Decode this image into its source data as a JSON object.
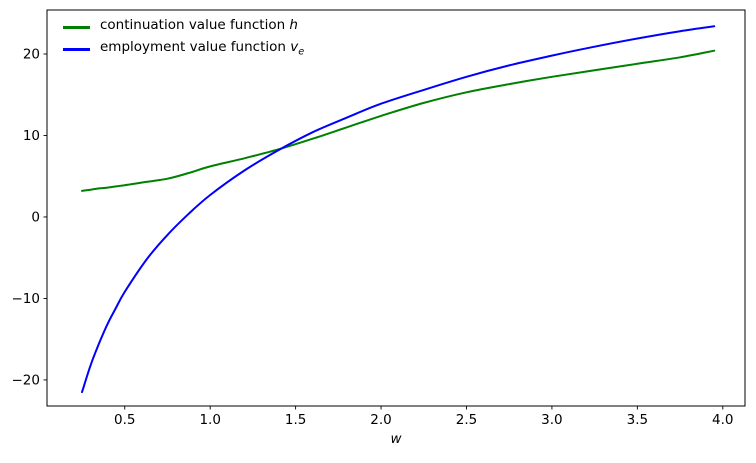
{
  "figure": {
    "background": "#ffffff",
    "frame_color": "#000000",
    "text_color": "#000000"
  },
  "chart_data": {
    "type": "line",
    "title": "",
    "xlabel": "w",
    "ylabel": "",
    "grid": false,
    "legend_position": "upper left",
    "xlim": [
      0.045,
      4.13
    ],
    "ylim": [
      -23.2,
      25.4
    ],
    "xticks": {
      "values": [
        0.5,
        1.0,
        1.5,
        2.0,
        2.5,
        3.0,
        3.5,
        4.0
      ],
      "labels": [
        "0.5",
        "1.0",
        "1.5",
        "2.0",
        "2.5",
        "3.0",
        "3.5",
        "4.0"
      ]
    },
    "yticks": {
      "values": [
        -20,
        -10,
        0,
        10,
        20
      ],
      "labels": [
        "−20",
        "−10",
        "0",
        "10",
        "20"
      ]
    },
    "x": [
      0.25,
      0.3,
      0.35,
      0.4,
      0.45,
      0.5,
      0.625,
      0.75,
      0.875,
      1.0,
      1.2,
      1.4,
      1.6,
      1.8,
      2.0,
      2.25,
      2.5,
      2.75,
      3.0,
      3.25,
      3.5,
      3.75,
      3.95
    ],
    "series": [
      {
        "name": "continuation value function h",
        "legend_plain": "continuation value function ",
        "legend_math": "h",
        "legend_sub": "",
        "color": "#008000",
        "line_width": 2,
        "values": [
          3.2,
          3.35,
          3.5,
          3.6,
          3.75,
          3.9,
          4.3,
          4.7,
          5.4,
          6.2,
          7.2,
          8.3,
          9.6,
          11.0,
          12.4,
          14.0,
          15.3,
          16.3,
          17.2,
          18.0,
          18.8,
          19.6,
          20.4
        ]
      },
      {
        "name": "employment value function v_e",
        "legend_plain": "employment value function ",
        "legend_math": "v",
        "legend_sub": "e",
        "color": "#0000ff",
        "line_width": 2,
        "values": [
          -21.5,
          -18.2,
          -15.5,
          -13.1,
          -11.1,
          -9.2,
          -5.3,
          -2.2,
          0.4,
          2.7,
          5.7,
          8.2,
          10.4,
          12.2,
          13.9,
          15.6,
          17.2,
          18.6,
          19.8,
          20.9,
          21.9,
          22.8,
          23.4
        ]
      }
    ]
  }
}
